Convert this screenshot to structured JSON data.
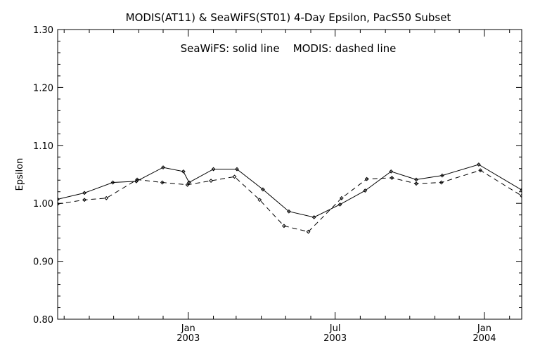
{
  "chart_data": {
    "type": "line",
    "title": "MODIS(AT11) & SeaWiFS(ST01) 4-Day Epsilon, PacS50 Subset",
    "annotation": "SeaWiFS: solid line    MODIS: dashed line",
    "xlabel": "",
    "ylabel": "Epsilon",
    "ylim": [
      0.8,
      1.3
    ],
    "yticks": [
      "0.80",
      "0.90",
      "1.00",
      "1.10",
      "1.20",
      "1.30"
    ],
    "xlim": [
      "2002-07-24",
      "2004-02-16"
    ],
    "xticks": [
      {
        "date": "2003-01-01",
        "label": "Jan",
        "year": "2003"
      },
      {
        "date": "2003-07-01",
        "label": "Jul",
        "year": "2003"
      },
      {
        "date": "2004-01-01",
        "label": "Jan",
        "year": "2004"
      }
    ],
    "minor_ticks": [
      "2002-08-01",
      "2002-09-01",
      "2002-10-01",
      "2002-11-01",
      "2002-12-01",
      "2003-02-01",
      "2003-03-01",
      "2003-04-01",
      "2003-05-01",
      "2003-06-01",
      "2003-08-01",
      "2003-09-01",
      "2003-10-01",
      "2003-11-01",
      "2003-12-01",
      "2004-02-01"
    ],
    "grid": false,
    "series": [
      {
        "name": "SeaWiFS",
        "style": "solid",
        "color": "#000000",
        "x": [
          "2002-07-24",
          "2002-08-26",
          "2002-09-30",
          "2002-10-29",
          "2002-12-01",
          "2002-12-26",
          "2003-01-02",
          "2003-02-01",
          "2003-03-02",
          "2003-04-03",
          "2003-05-05",
          "2003-06-05",
          "2003-07-07",
          "2003-08-07",
          "2003-09-08",
          "2003-10-09",
          "2003-11-10",
          "2003-12-25",
          "2004-02-16"
        ],
        "y": [
          1.007,
          1.018,
          1.036,
          1.038,
          1.062,
          1.055,
          1.036,
          1.059,
          1.059,
          1.024,
          0.986,
          0.976,
          0.998,
          1.022,
          1.055,
          1.041,
          1.048,
          1.067,
          1.023
        ]
      },
      {
        "name": "MODIS",
        "style": "dashed",
        "color": "#000000",
        "x": [
          "2002-07-24",
          "2002-08-26",
          "2002-09-22",
          "2002-10-30",
          "2002-11-30",
          "2002-12-31",
          "2003-01-29",
          "2003-02-27",
          "2003-03-30",
          "2003-04-29",
          "2003-05-29",
          "2003-07-09",
          "2003-08-09",
          "2003-09-09",
          "2003-10-09",
          "2003-11-09",
          "2003-12-27",
          "2004-02-16"
        ],
        "y": [
          0.999,
          1.006,
          1.009,
          1.041,
          1.036,
          1.032,
          1.039,
          1.046,
          1.006,
          0.961,
          0.951,
          1.009,
          1.042,
          1.044,
          1.034,
          1.036,
          1.057,
          1.013
        ]
      }
    ]
  }
}
